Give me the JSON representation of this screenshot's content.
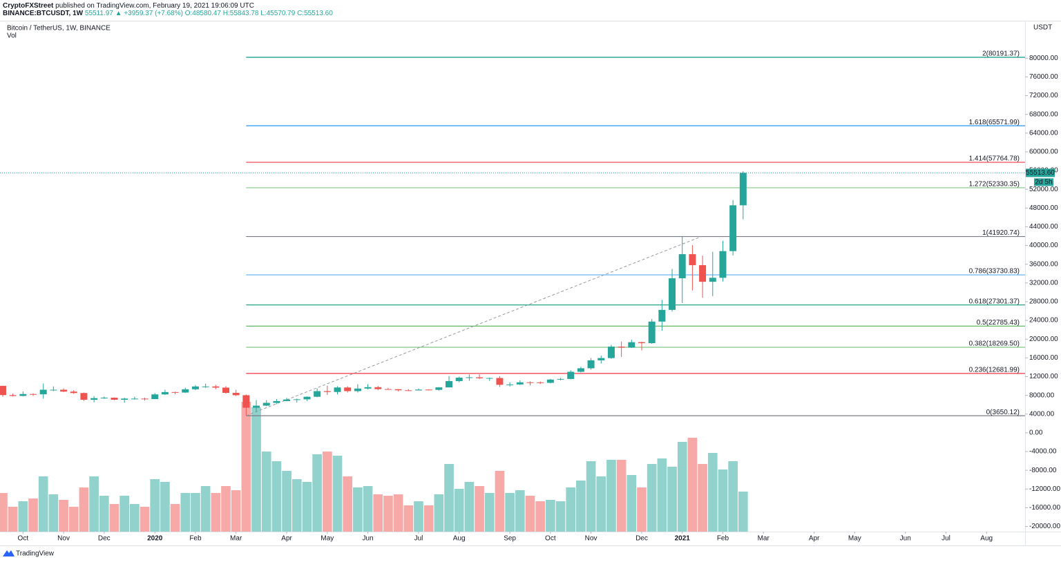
{
  "header": {
    "author": "CryptoFXStreet",
    "published": "published on TradingView.com, February 19, 2021 19:06:09 UTC",
    "symbol": "BINANCE:BTCUSDT, 1W",
    "quote": "55511.97 ▲ +3959.37 (+7.68%)",
    "ohlc": "O:48580.47 H:55843.78 L:45570.79 C:55513.60"
  },
  "footer": {
    "brand": "TradingView"
  },
  "chart_data": {
    "type": "candlestick",
    "title": "Bitcoin / TetherUS, 1W, BINANCE",
    "volume_title": "Vol",
    "currency": "USDT",
    "up_color": "#26a69a",
    "down_color": "#ef5350",
    "volume_up_color": "#92d2cc",
    "volume_down_color": "#f7a9a7",
    "grid": false,
    "open": [
      10030,
      8050,
      7870,
      8280,
      8220,
      9200,
      9200,
      8800,
      8500,
      7050,
      7400,
      7500,
      7060,
      7300,
      7300,
      7200,
      8200,
      8700,
      8600,
      9300,
      9900,
      9900,
      9650,
      8530,
      8030,
      5360,
      5800,
      6400,
      6780,
      7120,
      7150,
      7700,
      8900,
      8720,
      9680,
      8900,
      9450,
      9750,
      9330,
      9300,
      9080,
      9050,
      9230,
      9170,
      9700,
      11050,
      11770,
      11850,
      11650,
      11700,
      10250,
      10330,
      10780,
      10770,
      10670,
      11370,
      11500,
      13030,
      13780,
      15480,
      15960,
      18400,
      18200,
      19350,
      19150,
      23750,
      26250,
      33000,
      38150,
      35800,
      32250,
      33100,
      38800,
      48580.47
    ],
    "high": [
      10050,
      8400,
      8820,
      8400,
      10540,
      9900,
      9500,
      9100,
      8600,
      7840,
      7750,
      7550,
      7500,
      7700,
      7500,
      8500,
      9200,
      8780,
      9620,
      10200,
      10500,
      10250,
      9960,
      9200,
      8180,
      7000,
      6980,
      7200,
      7470,
      7300,
      7780,
      9480,
      10070,
      9950,
      9950,
      10380,
      10380,
      10000,
      9590,
      9330,
      9350,
      9440,
      9300,
      9760,
      12120,
      12000,
      12470,
      12500,
      11800,
      12080,
      10800,
      11200,
      10990,
      10950,
      11500,
      11730,
      13350,
      14100,
      15960,
      16480,
      18800,
      19500,
      19900,
      19450,
      24300,
      28400,
      35000,
      41950,
      40100,
      37850,
      38650,
      41000,
      49700,
      55843.78
    ],
    "low": [
      7700,
      7750,
      7780,
      7860,
      7300,
      8900,
      8700,
      8300,
      6800,
      6520,
      7250,
      6950,
      6430,
      7100,
      6870,
      7200,
      8100,
      8250,
      8500,
      9100,
      9600,
      9300,
      8400,
      7850,
      3650.12,
      4440,
      5700,
      6150,
      6750,
      6460,
      6800,
      7600,
      8100,
      8200,
      8600,
      8600,
      9260,
      9100,
      9250,
      8850,
      8900,
      9050,
      9050,
      9000,
      9700,
      10800,
      11100,
      11500,
      11100,
      9800,
      9890,
      10200,
      10140,
      10380,
      10540,
      11200,
      11400,
      12900,
      13500,
      14800,
      15800,
      16200,
      18100,
      17600,
      19000,
      21800,
      25900,
      27700,
      30400,
      28850,
      29200,
      32300,
      37900,
      45570.79
    ],
    "close": [
      8060,
      7870,
      8280,
      8220,
      9200,
      9200,
      8800,
      8500,
      7050,
      7400,
      7500,
      7060,
      7300,
      7300,
      7200,
      8200,
      8700,
      8600,
      9300,
      9900,
      9900,
      9650,
      8530,
      8030,
      5360,
      5800,
      6400,
      6780,
      7120,
      7150,
      7700,
      8900,
      8720,
      9680,
      8900,
      9450,
      9750,
      9330,
      9300,
      9080,
      9050,
      9230,
      9170,
      9700,
      11050,
      11770,
      11850,
      11650,
      11700,
      10250,
      10330,
      10780,
      10770,
      10670,
      11370,
      11500,
      13030,
      13780,
      15480,
      15960,
      18400,
      18200,
      19350,
      19150,
      23750,
      26250,
      33000,
      38150,
      35800,
      32250,
      33100,
      38800,
      48580,
      55513.6
    ],
    "volume": [
      28,
      18,
      22,
      24,
      40,
      27,
      23,
      18,
      32,
      40,
      26,
      20,
      26,
      20,
      18,
      38,
      36,
      20,
      28,
      28,
      33,
      28,
      33,
      30,
      94,
      90,
      58,
      51,
      44,
      38,
      36,
      56,
      58,
      55,
      40,
      32,
      33,
      27,
      26,
      27,
      19,
      22,
      19,
      27,
      49,
      31,
      36,
      33,
      28,
      44,
      28,
      30,
      26,
      22,
      23,
      22,
      32,
      37,
      51,
      40,
      52,
      52,
      41,
      32,
      49,
      53,
      47,
      65,
      68,
      49,
      57,
      45,
      51,
      29
    ],
    "volume_lim": [
      0,
      100
    ],
    "xlim": [
      -0.27,
      100.8
    ],
    "xticks": [
      {
        "value": 2,
        "label": "Oct"
      },
      {
        "value": 6,
        "label": "Nov"
      },
      {
        "value": 10,
        "label": "Dec"
      },
      {
        "value": 15,
        "label": "2020"
      },
      {
        "value": 19,
        "label": "Feb"
      },
      {
        "value": 23,
        "label": "Mar"
      },
      {
        "value": 28,
        "label": "Apr"
      },
      {
        "value": 32,
        "label": "May"
      },
      {
        "value": 36,
        "label": "Jun"
      },
      {
        "value": 41,
        "label": "Jul"
      },
      {
        "value": 45,
        "label": "Aug"
      },
      {
        "value": 50,
        "label": "Sep"
      },
      {
        "value": 54,
        "label": "Oct"
      },
      {
        "value": 58,
        "label": "Nov"
      },
      {
        "value": 63,
        "label": "Dec"
      },
      {
        "value": 67,
        "label": "2021"
      },
      {
        "value": 71,
        "label": "Feb"
      },
      {
        "value": 75,
        "label": "Mar"
      },
      {
        "value": 80,
        "label": "Apr"
      },
      {
        "value": 84,
        "label": "May"
      },
      {
        "value": 89,
        "label": "Jun"
      },
      {
        "value": 93,
        "label": "Jul"
      },
      {
        "value": 97,
        "label": "Aug"
      }
    ],
    "ylim": [
      -21100,
      88000
    ],
    "yticks": [
      {
        "value": 80000,
        "label": "80000.00"
      },
      {
        "value": 76000,
        "label": "76000.00"
      },
      {
        "value": 72000,
        "label": "72000.00"
      },
      {
        "value": 68000,
        "label": "68000.00"
      },
      {
        "value": 64000,
        "label": "64000.00"
      },
      {
        "value": 60000,
        "label": "60000.00"
      },
      {
        "value": 56000,
        "label": "56000.00"
      },
      {
        "value": 52000,
        "label": "52000.00"
      },
      {
        "value": 48000,
        "label": "48000.00"
      },
      {
        "value": 44000,
        "label": "44000.00"
      },
      {
        "value": 40000,
        "label": "40000.00"
      },
      {
        "value": 36000,
        "label": "36000.00"
      },
      {
        "value": 32000,
        "label": "32000.00"
      },
      {
        "value": 28000,
        "label": "28000.00"
      },
      {
        "value": 24000,
        "label": "24000.00"
      },
      {
        "value": 20000,
        "label": "20000.00"
      },
      {
        "value": 16000,
        "label": "16000.00"
      },
      {
        "value": 12000,
        "label": "12000.00"
      },
      {
        "value": 8000,
        "label": "8000.00"
      },
      {
        "value": 4000,
        "label": "4000.00"
      },
      {
        "value": 0,
        "label": "0.00"
      },
      {
        "value": -4000,
        "label": "-4000.00"
      },
      {
        "value": -8000,
        "label": "-8000.00"
      },
      {
        "value": -12000,
        "label": "-12000.00"
      },
      {
        "value": -16000,
        "label": "-16000.00"
      },
      {
        "value": -20000,
        "label": "-20000.00"
      }
    ],
    "fib_start": 24,
    "fib_levels": [
      {
        "label": "2(80191.37)",
        "value": 80191.37,
        "color": "#089981"
      },
      {
        "label": "1.618(65571.99)",
        "value": 65571.99,
        "color": "#2196f3"
      },
      {
        "label": "1.414(57764.78)",
        "value": 57764.78,
        "color": "#f23645"
      },
      {
        "label": "1.272(52330.35)",
        "value": 52330.35,
        "color": "#81c784"
      },
      {
        "label": "1(41920.74)",
        "value": 41920.74,
        "color": "#787b86"
      },
      {
        "label": "0.786(33730.83)",
        "value": 33730.83,
        "color": "#64b5f6"
      },
      {
        "label": "0.618(27301.37)",
        "value": 27301.37,
        "color": "#089981"
      },
      {
        "label": "0.5(22785.43)",
        "value": 22785.43,
        "color": "#4caf50"
      },
      {
        "label": "0.382(18269.50)",
        "value": 18269.5,
        "color": "#81c784"
      },
      {
        "label": "0.236(12681.99)",
        "value": 12681.99,
        "color": "#f23645"
      },
      {
        "label": "0(3650.12)",
        "value": 3650.12,
        "color": "#787b86"
      }
    ],
    "trendline": {
      "x": [
        24,
        68.9
      ],
      "y": [
        3650.12,
        41920.74
      ]
    },
    "last_price_label": "55513.60",
    "countdown": "2d 5h"
  }
}
